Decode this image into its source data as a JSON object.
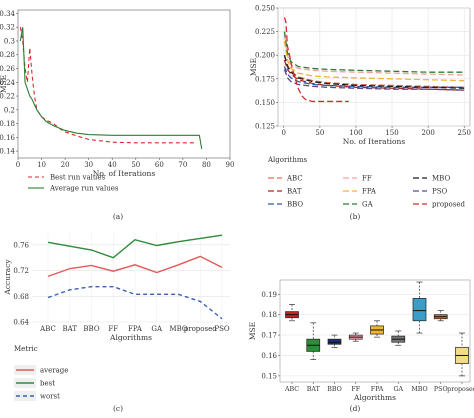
{
  "chart_data": [
    {
      "id": "a",
      "panel_label": "(a)",
      "type": "line",
      "xlabel": "No. of Iterations",
      "ylabel": "MSE",
      "xlim": [
        0,
        90
      ],
      "ylim": [
        0.13,
        0.345
      ],
      "xticks": [
        0,
        10,
        20,
        30,
        40,
        50,
        60,
        70,
        80,
        90
      ],
      "yticks": [
        0.14,
        0.16,
        0.18,
        0.2,
        0.22,
        0.24,
        0.26,
        0.28,
        0.3,
        0.32,
        0.34
      ],
      "ytick_labels": [
        "0.14",
        "0.16",
        "0.18",
        "0.2",
        "0.22",
        "0.24",
        "0.26",
        "0.28",
        "0.3",
        "0.32",
        "0.34"
      ],
      "legend_position": "bottom-left",
      "series": [
        {
          "name": "Best run values",
          "color": "#d9292b",
          "dash": true,
          "x": [
            1,
            2,
            3,
            4,
            5,
            6,
            7,
            8,
            10,
            12,
            15,
            18,
            20,
            25,
            30,
            35,
            40,
            50,
            60,
            70,
            76
          ],
          "y": [
            0.32,
            0.3,
            0.26,
            0.24,
            0.29,
            0.25,
            0.22,
            0.2,
            0.19,
            0.185,
            0.18,
            0.172,
            0.168,
            0.162,
            0.157,
            0.155,
            0.153,
            0.152,
            0.152,
            0.152,
            0.152
          ]
        },
        {
          "name": "Average run values",
          "color": "#2e7d32",
          "dash": false,
          "x": [
            1,
            2,
            3,
            4,
            5,
            6,
            8,
            10,
            12,
            15,
            20,
            25,
            30,
            40,
            50,
            60,
            70,
            77,
            78
          ],
          "y": [
            0.3,
            0.32,
            0.24,
            0.23,
            0.22,
            0.215,
            0.2,
            0.19,
            0.183,
            0.177,
            0.17,
            0.166,
            0.164,
            0.163,
            0.163,
            0.163,
            0.163,
            0.163,
            0.143
          ]
        }
      ]
    },
    {
      "id": "b",
      "panel_label": "(b)",
      "type": "line",
      "xlabel": "No. of Iterations",
      "ylabel": "MSE",
      "xlim": [
        -8,
        258
      ],
      "ylim": [
        0.125,
        0.25
      ],
      "xticks": [
        0,
        50,
        100,
        150,
        200,
        250
      ],
      "yticks": [
        0.125,
        0.15,
        0.175,
        0.2,
        0.225,
        0.25
      ],
      "ytick_labels": [
        "0.125",
        "0.150",
        "0.175",
        "0.200",
        "0.225",
        "0.250"
      ],
      "legend_title": "Algorithms",
      "legend_position": "bottom",
      "series": [
        {
          "name": "ABC",
          "color": "#e0714f",
          "dash": "6,3",
          "x": [
            1,
            5,
            10,
            20,
            40,
            60,
            100,
            150,
            200,
            250
          ],
          "y": [
            0.2,
            0.19,
            0.183,
            0.177,
            0.173,
            0.171,
            0.169,
            0.168,
            0.167,
            0.166
          ]
        },
        {
          "name": "BAT",
          "color": "#b02323",
          "dash": "6,3",
          "x": [
            1,
            5,
            10,
            20,
            40,
            60,
            100,
            150,
            200,
            250
          ],
          "y": [
            0.195,
            0.185,
            0.18,
            0.174,
            0.17,
            0.168,
            0.166,
            0.165,
            0.164,
            0.163
          ]
        },
        {
          "name": "BBO",
          "color": "#2f56b0",
          "dash": "6,3",
          "x": [
            1,
            5,
            10,
            20,
            40,
            60,
            100,
            150,
            200,
            250
          ],
          "y": [
            0.188,
            0.18,
            0.176,
            0.172,
            0.169,
            0.168,
            0.167,
            0.166,
            0.166,
            0.166
          ]
        },
        {
          "name": "FF",
          "color": "#f0a3a3",
          "dash": "6,3",
          "x": [
            1,
            5,
            10,
            20,
            40,
            60,
            100,
            150,
            200,
            250
          ],
          "y": [
            0.222,
            0.2,
            0.19,
            0.186,
            0.184,
            0.183,
            0.182,
            0.181,
            0.18,
            0.179
          ]
        },
        {
          "name": "FPA",
          "color": "#f2b531",
          "dash": "6,3",
          "x": [
            1,
            5,
            10,
            20,
            40,
            60,
            100,
            150,
            200,
            250
          ],
          "y": [
            0.215,
            0.195,
            0.186,
            0.181,
            0.178,
            0.177,
            0.176,
            0.175,
            0.174,
            0.173
          ]
        },
        {
          "name": "GA",
          "color": "#2e7d32",
          "dash": "6,3",
          "x": [
            1,
            5,
            10,
            20,
            40,
            60,
            100,
            150,
            200,
            250
          ],
          "y": [
            0.225,
            0.203,
            0.193,
            0.188,
            0.186,
            0.185,
            0.184,
            0.183,
            0.182,
            0.182
          ]
        },
        {
          "name": "MBO",
          "color": "#1c1c1c",
          "dash": "6,3",
          "x": [
            1,
            5,
            10,
            20,
            40,
            60,
            100,
            150,
            200,
            250
          ],
          "y": [
            0.2,
            0.188,
            0.182,
            0.176,
            0.172,
            0.17,
            0.168,
            0.167,
            0.166,
            0.165
          ]
        },
        {
          "name": "PSO",
          "color": "#5b4a8a",
          "dash": "6,3",
          "x": [
            1,
            5,
            10,
            20,
            40,
            60,
            100,
            150,
            200,
            250
          ],
          "y": [
            0.185,
            0.176,
            0.172,
            0.169,
            0.167,
            0.166,
            0.165,
            0.164,
            0.164,
            0.163
          ]
        },
        {
          "name": "proposed",
          "color": "#d9292b",
          "dash": "6,3",
          "x": [
            1,
            3,
            5,
            8,
            12,
            16,
            20,
            25,
            30,
            40,
            60,
            90
          ],
          "y": [
            0.24,
            0.235,
            0.21,
            0.2,
            0.185,
            0.175,
            0.165,
            0.157,
            0.153,
            0.151,
            0.151,
            0.151
          ]
        }
      ]
    },
    {
      "id": "c",
      "panel_label": "(c)",
      "type": "line",
      "xlabel": "Algorithms",
      "ylabel": "Accuracy",
      "categories": [
        "ABC",
        "BAT",
        "BBO",
        "FF",
        "FPA",
        "GA",
        "MBO",
        "proposed",
        "PSO"
      ],
      "ylim": [
        0.64,
        0.78
      ],
      "yticks": [
        0.64,
        0.68,
        0.72,
        0.76
      ],
      "ytick_labels": [
        "0.64",
        "0.68",
        "0.72",
        "0.76"
      ],
      "legend_title": "Metric",
      "legend_position": "bottom-left",
      "series": [
        {
          "name": "average",
          "color": "#e05a5a",
          "dash": false,
          "values": [
            0.711,
            0.723,
            0.728,
            0.719,
            0.729,
            0.717,
            0.729,
            0.742,
            0.725
          ]
        },
        {
          "name": "best",
          "color": "#2e8b3a",
          "dash": false,
          "values": [
            0.764,
            0.758,
            0.752,
            0.74,
            0.768,
            0.759,
            0.765,
            0.77,
            0.775
          ]
        },
        {
          "name": "worst",
          "color": "#3a5fb0",
          "dash": true,
          "values": [
            0.678,
            0.69,
            0.695,
            0.695,
            0.683,
            0.683,
            0.683,
            0.672,
            0.645
          ]
        }
      ]
    },
    {
      "id": "d",
      "panel_label": "(d)",
      "type": "box",
      "xlabel": "Algorithms",
      "ylabel": "MSE",
      "ylim": [
        0.147,
        0.197
      ],
      "yticks": [
        0.15,
        0.16,
        0.17,
        0.18,
        0.19
      ],
      "ytick_labels": [
        "0.15",
        "0.16",
        "0.17",
        "0.18",
        "0.19"
      ],
      "boxes": [
        {
          "category": "ABC",
          "color": "#c0242a",
          "min": 0.177,
          "q1": 0.1785,
          "median": 0.18,
          "q3": 0.1815,
          "max": 0.185
        },
        {
          "category": "BAT",
          "color": "#2e8b3a",
          "min": 0.158,
          "q1": 0.162,
          "median": 0.165,
          "q3": 0.168,
          "max": 0.176
        },
        {
          "category": "BBO",
          "color": "#1f2f7a",
          "min": 0.164,
          "q1": 0.1655,
          "median": 0.1665,
          "q3": 0.168,
          "max": 0.17
        },
        {
          "category": "FF",
          "color": "#f0a0a8",
          "min": 0.167,
          "q1": 0.168,
          "median": 0.169,
          "q3": 0.17,
          "max": 0.171
        },
        {
          "category": "FPA",
          "color": "#f2b531",
          "min": 0.169,
          "q1": 0.1705,
          "median": 0.1725,
          "q3": 0.1745,
          "max": 0.177
        },
        {
          "category": "GA",
          "color": "#777777",
          "min": 0.165,
          "q1": 0.1665,
          "median": 0.168,
          "q3": 0.1695,
          "max": 0.172
        },
        {
          "category": "MBO",
          "color": "#3a9ec9",
          "min": 0.171,
          "q1": 0.177,
          "median": 0.182,
          "q3": 0.188,
          "max": 0.196
        },
        {
          "category": "PSO",
          "color": "#e0672a",
          "min": 0.177,
          "q1": 0.178,
          "median": 0.179,
          "q3": 0.18,
          "max": 0.182
        },
        {
          "category": "proposed",
          "color": "#f2dc8a",
          "min": 0.15,
          "q1": 0.156,
          "median": 0.16,
          "q3": 0.164,
          "max": 0.171
        }
      ]
    }
  ]
}
